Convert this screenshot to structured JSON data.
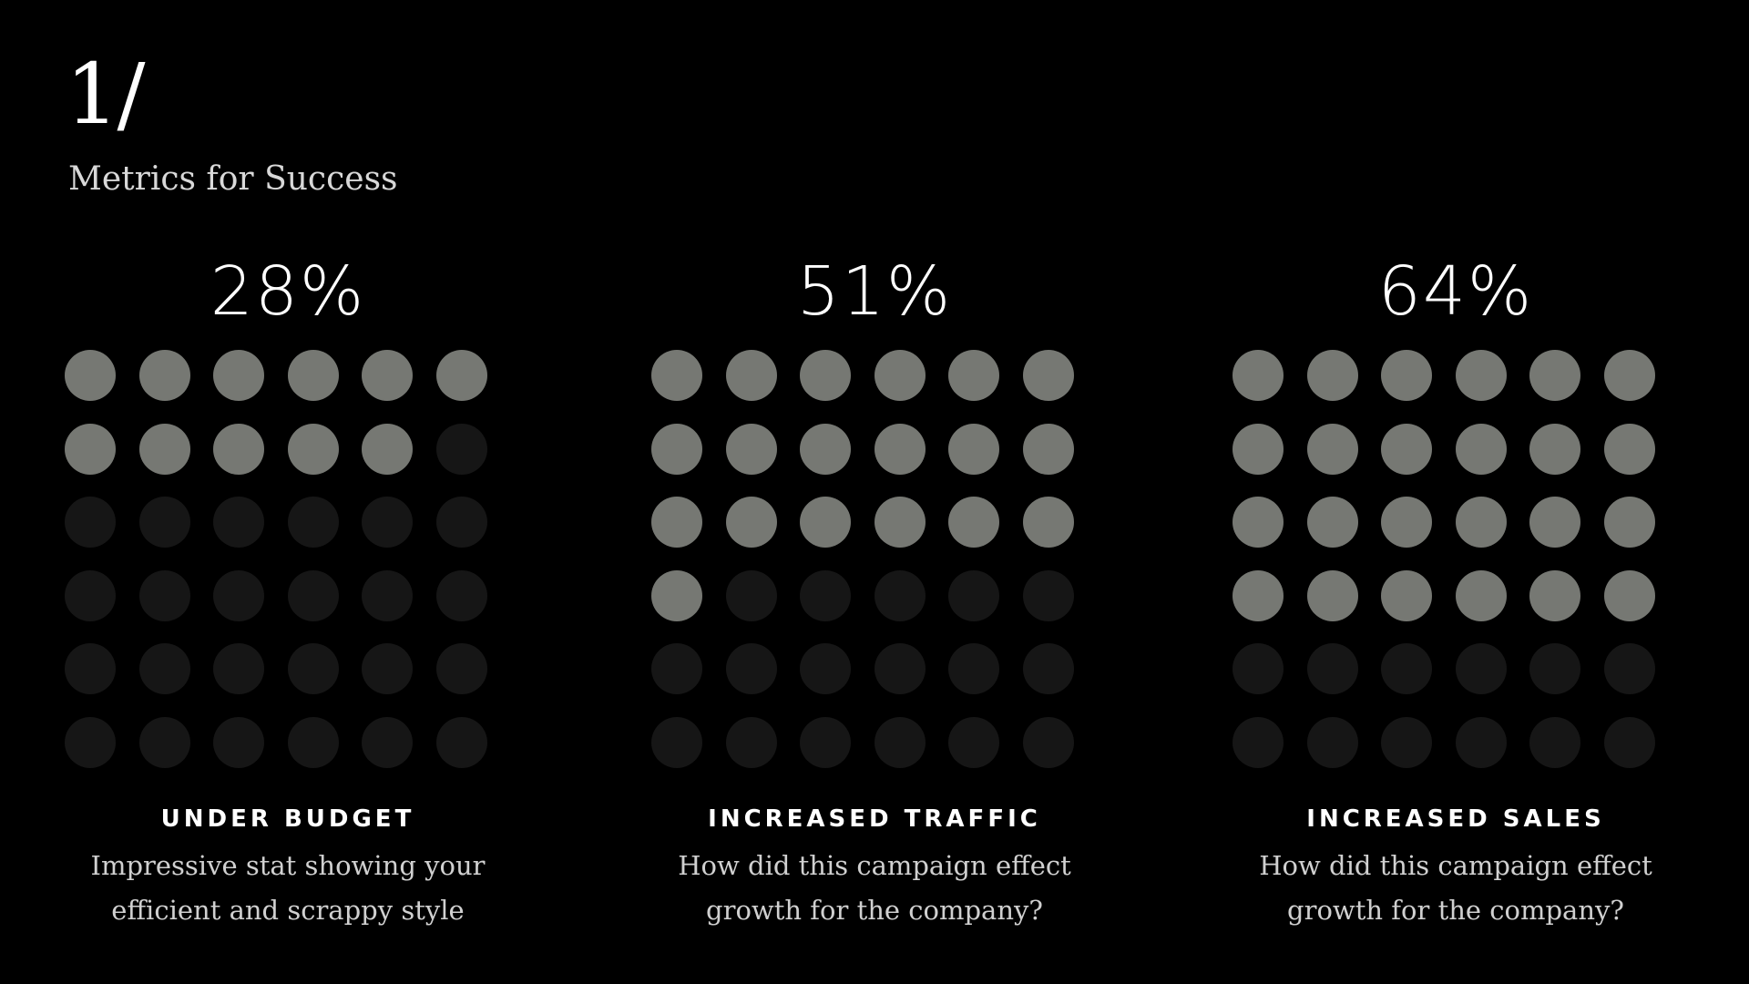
{
  "header": {
    "slide_number": "1/",
    "subtitle": "Metrics for Success"
  },
  "colors": {
    "filled": "#767873",
    "empty": "#161616",
    "background": "#000000"
  },
  "metrics": [
    {
      "value": "28%",
      "filled_dots": 11,
      "total_dots": 36,
      "label": "UNDER BUDGET",
      "desc_line1": "Impressive stat showing your",
      "desc_line2": "efficient and scrappy style"
    },
    {
      "value": "51%",
      "filled_dots": 19,
      "total_dots": 36,
      "label": "INCREASED TRAFFIC",
      "desc_line1": "How did this campaign effect",
      "desc_line2": "growth for the company?"
    },
    {
      "value": "64%",
      "filled_dots": 24,
      "total_dots": 36,
      "label": "INCREASED SALES",
      "desc_line1": "How did this campaign effect",
      "desc_line2": "growth for the company?"
    }
  ]
}
